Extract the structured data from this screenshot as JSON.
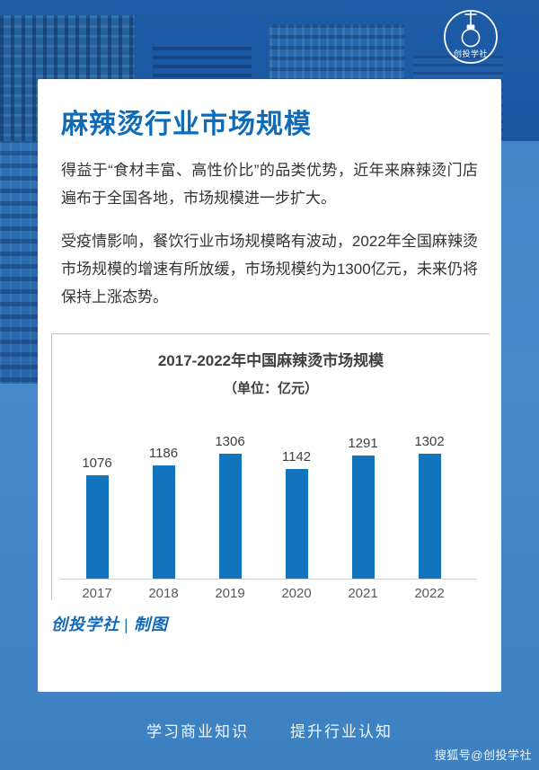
{
  "logo": {
    "text": "创投学社"
  },
  "card": {
    "title": "麻辣烫行业市场规模",
    "paragraphs": [
      "得益于“食材丰富、高性价比”的品类优势，近年来麻辣烫门店遍布于全国各地，市场规模进一步扩大。",
      "受疫情影响，餐饮行业市场规模略有波动，2022年全国麻辣烫市场规模的增速有所放缓，市场规模约为1300亿元，未来仍将保持上涨态势。"
    ],
    "chart_caption": "创投学社 | 制图"
  },
  "footer": {
    "slogan_left": "学习商业知识",
    "slogan_right": "提升行业认知",
    "watermark": "搜狐号@创投学社"
  },
  "colors": {
    "accent_blue": "#0E6BB8",
    "bar_blue": "#1274BC",
    "background_blue": "#4489CA",
    "chart_border": "#A6CAE4"
  },
  "chart_data": {
    "type": "bar",
    "title": "2017-2022年中国麻辣烫市场规模",
    "subtitle": "（单位：亿元）",
    "categories": [
      "2017",
      "2018",
      "2019",
      "2020",
      "2021",
      "2022"
    ],
    "values": [
      1076,
      1186,
      1306,
      1142,
      1291,
      1302
    ],
    "unit": "亿元",
    "ylim": [
      0,
      1306
    ],
    "bar_color": "#1274BC",
    "grid": false,
    "legend": "none",
    "data_labels": true
  }
}
